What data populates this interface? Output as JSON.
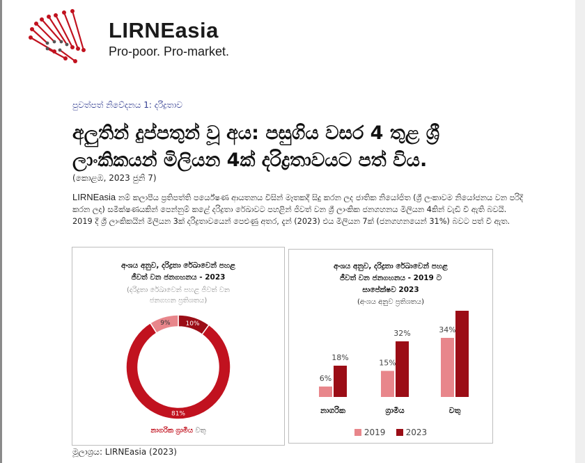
{
  "logo": {
    "name": "LIRNEasia",
    "tagline": "Pro-poor. Pro-market."
  },
  "breadcrumb": "පුවත්පත් නිවේදනය 1: දරිද්‍රතාව",
  "headline": {
    "line1": "අලුතින් දුප්පතුන් වූ අය: පසුගිය වසර 4 තුළ ශ්‍රී",
    "line2": "ලාංකිකයන් මිලියන 4ක් දරිද්‍රතාවයට පත් විය."
  },
  "dateline": "(කොළඹ, 2023 ජුනි 7)",
  "body": {
    "lead": "LIRNEasia",
    "text": " නම් කලාපීය ප්‍රතිපත්ති පර්යේෂණ ආයතනය විසින් මෑතකදී සිදු කරන ලද ජාතික නියෝජිත (ශ්‍රී ලංකාවම නියෝජනය වන පරිදි කරන ලද) සමීක්ෂණයකින් පෙන්නුම් කළේ දරිද්‍රතා රේඛාවට පහළින් ජීවත් වන ශ්‍රී ලාංකික ජනගහනය මිලියන 4කින් වැඩි වී ඇති බවයි. 2019 දී ශ්‍රී ලාංකිකයින් මිලියන 3ක් දරිද්‍රතාවයෙන් පෙළුණු අතර, දැන් (2023) එය මිලියන 7ක් (ජනගහනයෙන් 31%) බවට පත් වී ඇත."
  },
  "source": "මූලාශ්‍රය: LIRNEasia (2023)",
  "colors": {
    "dark_red": "#9b0d16",
    "red": "#c1121f",
    "pink": "#e8868b",
    "text_blue": "#2f3a8f"
  },
  "chart_data": [
    {
      "type": "pie",
      "donut": true,
      "title_lines": [
        "අංශය අනුව, දරිද්‍රතා රේඛාවෙන් පහළ",
        "ජීවත් වන ජනගහනය - 2023"
      ],
      "subtitle_lines": [
        "(දරිද්‍රතා රේඛාවෙන් පහළ ජීවත් වන",
        "ජනගහන ප්‍රතිශතය)"
      ],
      "slices": [
        {
          "label": "නාගරික",
          "value": 10,
          "display": "10%",
          "color": "#9b0d16"
        },
        {
          "label": "ග්‍රාමීය",
          "value": 81,
          "display": "81%",
          "color": "#c1121f"
        },
        {
          "label": "වතු",
          "value": 9,
          "display": "9%",
          "color": "#e8868b"
        }
      ],
      "legend_position": "bottom"
    },
    {
      "type": "bar",
      "title_lines": [
        "අංශය අනුව, දරිද්‍රතා රේඛාවෙන් පහළ",
        "ජීවත් වන ජනගහනය - 2019 ට",
        "සාපේක්ෂව 2023"
      ],
      "subtitle": "(අංශය අනුව ප්‍රතිශතය)",
      "categories": [
        "නාගරික",
        "ග්‍රාමීය",
        "වතු"
      ],
      "series": [
        {
          "name": "2019",
          "values": [
            6,
            15,
            34
          ],
          "labels": [
            "6%",
            "15%",
            "34%"
          ],
          "color": "#e8868b"
        },
        {
          "name": "2023",
          "values": [
            18,
            32,
            51
          ],
          "labels": [
            "18%",
            "32%",
            "51%"
          ],
          "color": "#9b0d16"
        }
      ],
      "ylim": [
        0,
        60
      ],
      "grid": false,
      "legend_position": "bottom"
    }
  ]
}
